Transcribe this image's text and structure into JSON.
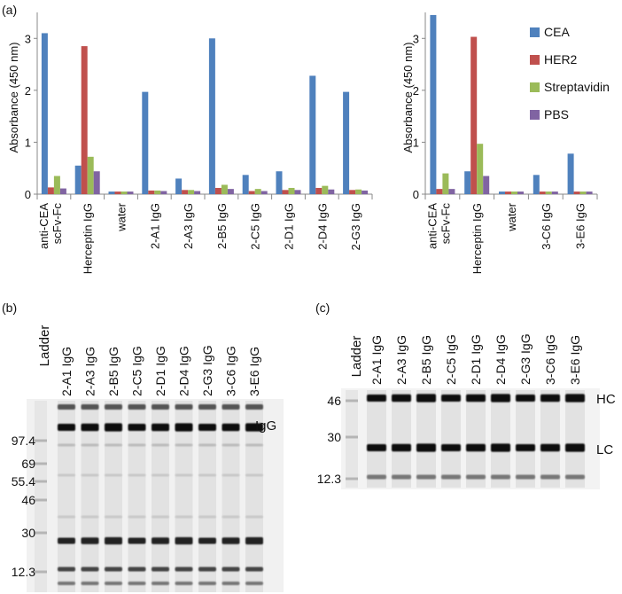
{
  "panels": {
    "a": "(a)",
    "b": "(b)",
    "c": "(c)"
  },
  "chart_data": [
    {
      "type": "bar",
      "ylabel": "Absorbance (450 nm)",
      "ylim": [
        0,
        3.5
      ],
      "yticks": [
        0,
        1,
        2,
        3
      ],
      "categories": [
        "anti-CEA scFv-Fc",
        "Herceptin IgG",
        "water",
        "2-A1 IgG",
        "2-A3 IgG",
        "2-B5 IgG",
        "2-C5 IgG",
        "2-D1 IgG",
        "2-D4 IgG",
        "2-G3 IgG"
      ],
      "category_lines": [
        [
          "anti-CEA",
          "scFv-Fc"
        ],
        [
          "Herceptin IgG"
        ],
        [
          "water"
        ],
        [
          "2-A1 IgG"
        ],
        [
          "2-A3 IgG"
        ],
        [
          "2-B5 IgG"
        ],
        [
          "2-C5 IgG"
        ],
        [
          "2-D1 IgG"
        ],
        [
          "2-D4 IgG"
        ],
        [
          "2-G3 IgG"
        ]
      ],
      "series": [
        {
          "name": "CEA",
          "color": "#4f81bd",
          "values": [
            3.1,
            0.55,
            0.05,
            1.97,
            0.3,
            3.0,
            0.37,
            0.44,
            2.28,
            1.97
          ]
        },
        {
          "name": "HER2",
          "color": "#c0504d",
          "values": [
            0.13,
            2.85,
            0.05,
            0.07,
            0.08,
            0.12,
            0.06,
            0.08,
            0.12,
            0.08
          ]
        },
        {
          "name": "Streptavidin",
          "color": "#9bbb59",
          "values": [
            0.35,
            0.72,
            0.05,
            0.07,
            0.08,
            0.18,
            0.1,
            0.12,
            0.16,
            0.09
          ]
        },
        {
          "name": "PBS",
          "color": "#8064a2",
          "values": [
            0.11,
            0.44,
            0.05,
            0.06,
            0.06,
            0.1,
            0.06,
            0.08,
            0.09,
            0.07
          ]
        }
      ]
    },
    {
      "type": "bar",
      "ylabel": "Absorbance (450 nm)",
      "ylim": [
        0,
        3.5
      ],
      "yticks": [
        0,
        1,
        2,
        3
      ],
      "legend_position": "top-right",
      "categories": [
        "anti-CEA scFv-Fc",
        "Herceptin IgG",
        "water",
        "3-C6 IgG",
        "3-E6 IgG"
      ],
      "category_lines": [
        [
          "anti-CEA",
          "scFv-Fc"
        ],
        [
          "Herceptin IgG"
        ],
        [
          "water"
        ],
        [
          "3-C6 IgG"
        ],
        [
          "3-E6 IgG"
        ]
      ],
      "series": [
        {
          "name": "CEA",
          "color": "#4f81bd",
          "values": [
            3.45,
            0.44,
            0.05,
            0.37,
            0.78
          ]
        },
        {
          "name": "HER2",
          "color": "#c0504d",
          "values": [
            0.1,
            3.03,
            0.05,
            0.05,
            0.05
          ]
        },
        {
          "name": "Streptavidin",
          "color": "#9bbb59",
          "values": [
            0.4,
            0.97,
            0.05,
            0.05,
            0.05
          ]
        },
        {
          "name": "PBS",
          "color": "#8064a2",
          "values": [
            0.1,
            0.35,
            0.05,
            0.05,
            0.05
          ]
        }
      ]
    }
  ],
  "gels": [
    {
      "panel": "b",
      "ladder_label": "Ladder",
      "lanes": [
        "2-A1 IgG",
        "2-A3 IgG",
        "2-B5 IgG",
        "2-C5 IgG",
        "2-D1 IgG",
        "2-D4 IgG",
        "2-G3 IgG",
        "3-C6 IgG",
        "3-E6 IgG"
      ],
      "markers": [
        "97.4",
        "69",
        "55.4",
        "46",
        "30",
        "12.3"
      ],
      "band_labels": [
        "IgG"
      ]
    },
    {
      "panel": "c",
      "ladder_label": "Ladder",
      "lanes": [
        "2-A1 IgG",
        "2-A3 IgG",
        "2-B5 IgG",
        "2-C5 IgG",
        "2-D1 IgG",
        "2-D4 IgG",
        "2-G3 IgG",
        "3-C6 IgG",
        "3-E6 IgG"
      ],
      "markers": [
        "46",
        "30",
        "12.3"
      ],
      "band_labels": [
        "HC",
        "LC"
      ]
    }
  ]
}
